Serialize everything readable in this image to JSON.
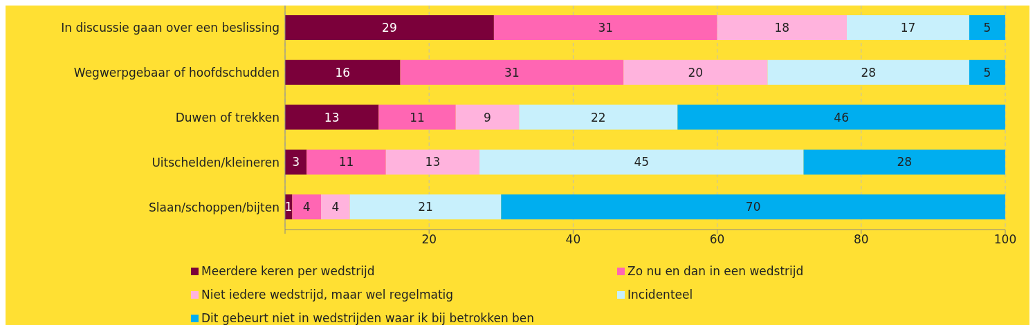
{
  "chart_data": {
    "type": "bar",
    "orientation": "horizontal",
    "stacked": true,
    "categories": [
      "In discussie gaan over een beslissing",
      "Wegwerpgebaar of hoofdschudden",
      "Duwen of trekken",
      "Uitschelden/kleineren",
      "Slaan/schoppen/bijten"
    ],
    "series": [
      {
        "name": "Meerdere keren per wedstrijd",
        "color": "#7b003a",
        "values": [
          29,
          16,
          13,
          3,
          1
        ],
        "value_labels": [
          "29",
          "16",
          "13",
          "3",
          "1"
        ]
      },
      {
        "name": "Zo nu en dan in een wedstrijd",
        "color": "#ff66b3",
        "values": [
          31,
          31,
          10.7,
          11,
          4
        ],
        "value_labels": [
          "31",
          "31",
          "11",
          "11",
          "4"
        ]
      },
      {
        "name": "Niet iedere wedstrijd, maar wel regelmatig",
        "color": "#ffb3dd",
        "values": [
          18,
          20,
          8.8,
          13,
          4
        ],
        "value_labels": [
          "18",
          "20",
          "9",
          "13",
          "4"
        ]
      },
      {
        "name": "Incidenteel",
        "color": "#c8f0fc",
        "values": [
          17,
          28,
          22,
          45,
          21
        ],
        "value_labels": [
          "17",
          "28",
          "22",
          "45",
          "21"
        ]
      },
      {
        "name": "Dit gebeurt niet in wedstrijden waar ik bij betrokken ben",
        "color": "#00aeef",
        "values": [
          5,
          5,
          45.5,
          28,
          70
        ],
        "value_labels": [
          "5",
          "5",
          "46",
          "28",
          "70"
        ]
      }
    ],
    "xlim": [
      0,
      100
    ],
    "xticks": [
      {
        "value": 0,
        "label": null
      },
      20,
      40,
      60,
      80,
      100
    ],
    "grid": "x",
    "legend": "bottom"
  }
}
